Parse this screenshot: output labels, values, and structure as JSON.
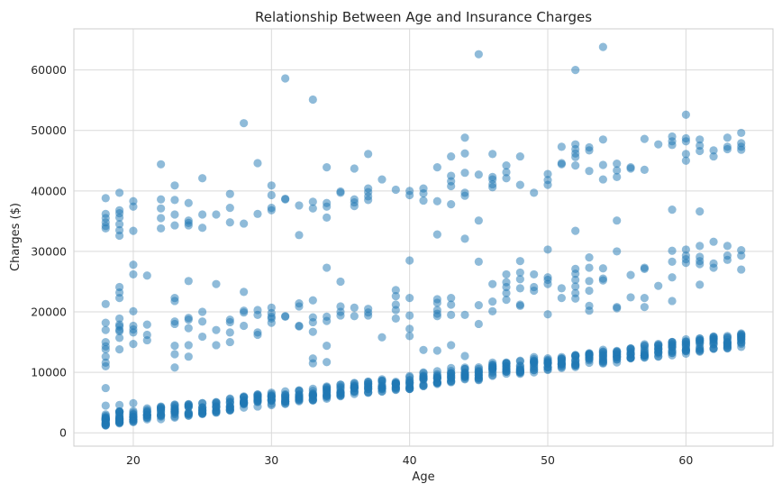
{
  "chart_data": {
    "type": "scatter",
    "title": "Relationship Between Age and Insurance Charges",
    "xlabel": "Age",
    "ylabel": "Charges ($)",
    "xlim": [
      15.7,
      66.3
    ],
    "ylim": [
      -2200,
      66800
    ],
    "xticks": [
      20,
      30,
      40,
      50,
      60
    ],
    "yticks": [
      0,
      10000,
      20000,
      30000,
      40000,
      50000,
      60000
    ],
    "grid": true,
    "point_color": "#1f77b4",
    "point_alpha": 0.5,
    "tiers": {
      "low": {
        "base": 1100,
        "slope": 280,
        "spread": 2200,
        "min_age": 18,
        "max_age": 64
      },
      "mid": {
        "base": 13500,
        "slope": 210,
        "spread": 9500
      },
      "high": {
        "base": 33500,
        "slope": 230,
        "spread": 9000
      }
    },
    "points": [
      [
        18,
        38800
      ],
      [
        18,
        36200
      ],
      [
        18,
        35500
      ],
      [
        18,
        34800
      ],
      [
        18,
        34200
      ],
      [
        18,
        33800
      ],
      [
        18,
        21300
      ],
      [
        18,
        18200
      ],
      [
        18,
        17000
      ],
      [
        18,
        15000
      ],
      [
        18,
        14300
      ],
      [
        18,
        13800
      ],
      [
        18,
        12600
      ],
      [
        18,
        11600
      ],
      [
        18,
        11000
      ],
      [
        18,
        7400
      ],
      [
        18,
        4500
      ],
      [
        19,
        39700
      ],
      [
        19,
        36800
      ],
      [
        19,
        36300
      ],
      [
        19,
        35600
      ],
      [
        19,
        34500
      ],
      [
        19,
        33500
      ],
      [
        19,
        32600
      ],
      [
        19,
        24100
      ],
      [
        19,
        23200
      ],
      [
        19,
        22300
      ],
      [
        19,
        18900
      ],
      [
        19,
        17900
      ],
      [
        19,
        17600
      ],
      [
        19,
        17000
      ],
      [
        19,
        16800
      ],
      [
        19,
        15700
      ],
      [
        19,
        13800
      ],
      [
        19,
        4600
      ],
      [
        20,
        38300
      ],
      [
        20,
        37400
      ],
      [
        20,
        33400
      ],
      [
        20,
        27800
      ],
      [
        20,
        26200
      ],
      [
        20,
        20100
      ],
      [
        20,
        17700
      ],
      [
        20,
        17100
      ],
      [
        20,
        16600
      ],
      [
        20,
        14700
      ],
      [
        20,
        4900
      ],
      [
        21,
        26000
      ],
      [
        21,
        17900
      ],
      [
        21,
        16200
      ],
      [
        21,
        15300
      ],
      [
        22,
        44400
      ],
      [
        22,
        38600
      ],
      [
        22,
        37100
      ],
      [
        22,
        35500
      ],
      [
        22,
        33800
      ],
      [
        23,
        40900
      ],
      [
        23,
        38500
      ],
      [
        23,
        36100
      ],
      [
        23,
        34300
      ],
      [
        23,
        22300
      ],
      [
        23,
        21800
      ],
      [
        23,
        18400
      ],
      [
        23,
        18000
      ],
      [
        23,
        14400
      ],
      [
        23,
        13000
      ],
      [
        23,
        10800
      ],
      [
        24,
        38000
      ],
      [
        24,
        35100
      ],
      [
        24,
        34700
      ],
      [
        24,
        34300
      ],
      [
        24,
        25100
      ],
      [
        24,
        19000
      ],
      [
        24,
        18700
      ],
      [
        24,
        17300
      ],
      [
        24,
        14500
      ],
      [
        24,
        12600
      ],
      [
        25,
        42100
      ],
      [
        25,
        36100
      ],
      [
        25,
        33900
      ],
      [
        25,
        20000
      ],
      [
        25,
        18400
      ],
      [
        25,
        15900
      ],
      [
        26,
        36100
      ],
      [
        26,
        24600
      ],
      [
        26,
        17000
      ],
      [
        26,
        14500
      ],
      [
        27,
        39500
      ],
      [
        27,
        37200
      ],
      [
        27,
        34800
      ],
      [
        27,
        18700
      ],
      [
        27,
        18300
      ],
      [
        27,
        16600
      ],
      [
        27,
        15000
      ],
      [
        28,
        51200
      ],
      [
        28,
        34600
      ],
      [
        28,
        23300
      ],
      [
        28,
        20200
      ],
      [
        28,
        19900
      ],
      [
        28,
        17700
      ],
      [
        29,
        44600
      ],
      [
        29,
        36200
      ],
      [
        29,
        20300
      ],
      [
        29,
        19500
      ],
      [
        29,
        16600
      ],
      [
        29,
        16200
      ],
      [
        30,
        40900
      ],
      [
        30,
        39300
      ],
      [
        30,
        37200
      ],
      [
        30,
        36800
      ],
      [
        30,
        20700
      ],
      [
        30,
        19800
      ],
      [
        30,
        19200
      ],
      [
        30,
        18900
      ],
      [
        30,
        18200
      ],
      [
        31,
        58600
      ],
      [
        31,
        38700
      ],
      [
        31,
        38600
      ],
      [
        31,
        19200
      ],
      [
        31,
        19300
      ],
      [
        32,
        37600
      ],
      [
        32,
        32700
      ],
      [
        32,
        21400
      ],
      [
        32,
        20900
      ],
      [
        32,
        17700
      ],
      [
        32,
        17600
      ],
      [
        33,
        55100
      ],
      [
        33,
        38200
      ],
      [
        33,
        37100
      ],
      [
        33,
        21900
      ],
      [
        33,
        19100
      ],
      [
        33,
        18300
      ],
      [
        33,
        16700
      ],
      [
        33,
        12300
      ],
      [
        33,
        11500
      ],
      [
        34,
        43900
      ],
      [
        34,
        38000
      ],
      [
        34,
        37400
      ],
      [
        34,
        35600
      ],
      [
        34,
        27300
      ],
      [
        34,
        19200
      ],
      [
        34,
        18500
      ],
      [
        34,
        14400
      ],
      [
        34,
        11700
      ],
      [
        35,
        39900
      ],
      [
        35,
        39700
      ],
      [
        35,
        25000
      ],
      [
        35,
        20900
      ],
      [
        35,
        20000
      ],
      [
        35,
        19400
      ],
      [
        36,
        43700
      ],
      [
        36,
        38600
      ],
      [
        36,
        38100
      ],
      [
        36,
        37500
      ],
      [
        36,
        20700
      ],
      [
        36,
        19300
      ],
      [
        37,
        46100
      ],
      [
        37,
        40400
      ],
      [
        37,
        39800
      ],
      [
        37,
        39100
      ],
      [
        37,
        38500
      ],
      [
        37,
        20500
      ],
      [
        37,
        19900
      ],
      [
        37,
        19400
      ],
      [
        38,
        41900
      ],
      [
        38,
        15800
      ],
      [
        39,
        40200
      ],
      [
        39,
        23600
      ],
      [
        39,
        22600
      ],
      [
        39,
        21200
      ],
      [
        39,
        20300
      ],
      [
        39,
        18900
      ],
      [
        40,
        40000
      ],
      [
        40,
        39300
      ],
      [
        40,
        28500
      ],
      [
        40,
        22300
      ],
      [
        40,
        19400
      ],
      [
        40,
        17200
      ],
      [
        40,
        16000
      ],
      [
        41,
        40400
      ],
      [
        41,
        39600
      ],
      [
        41,
        38400
      ],
      [
        41,
        13700
      ],
      [
        42,
        43900
      ],
      [
        42,
        38300
      ],
      [
        42,
        32800
      ],
      [
        42,
        22100
      ],
      [
        42,
        21500
      ],
      [
        42,
        20300
      ],
      [
        42,
        19700
      ],
      [
        42,
        19300
      ],
      [
        42,
        13600
      ],
      [
        43,
        45700
      ],
      [
        43,
        42500
      ],
      [
        43,
        41600
      ],
      [
        43,
        40800
      ],
      [
        43,
        37800
      ],
      [
        43,
        22300
      ],
      [
        43,
        21200
      ],
      [
        43,
        19500
      ],
      [
        43,
        14500
      ],
      [
        44,
        48800
      ],
      [
        44,
        46200
      ],
      [
        44,
        43000
      ],
      [
        44,
        39700
      ],
      [
        44,
        39200
      ],
      [
        44,
        32100
      ],
      [
        44,
        19500
      ],
      [
        44,
        12700
      ],
      [
        45,
        62600
      ],
      [
        45,
        42700
      ],
      [
        45,
        35100
      ],
      [
        45,
        28300
      ],
      [
        45,
        21100
      ],
      [
        45,
        18000
      ],
      [
        46,
        46100
      ],
      [
        46,
        42300
      ],
      [
        46,
        41900
      ],
      [
        46,
        41100
      ],
      [
        46,
        40600
      ],
      [
        46,
        24600
      ],
      [
        46,
        21700
      ],
      [
        46,
        20100
      ],
      [
        47,
        44200
      ],
      [
        47,
        43100
      ],
      [
        47,
        42100
      ],
      [
        47,
        26200
      ],
      [
        47,
        24900
      ],
      [
        47,
        24100
      ],
      [
        47,
        23100
      ],
      [
        47,
        22000
      ],
      [
        48,
        45700
      ],
      [
        48,
        41000
      ],
      [
        48,
        28400
      ],
      [
        48,
        26500
      ],
      [
        48,
        25400
      ],
      [
        48,
        23900
      ],
      [
        48,
        21200
      ],
      [
        48,
        21000
      ],
      [
        49,
        39700
      ],
      [
        49,
        26200
      ],
      [
        49,
        24100
      ],
      [
        49,
        23500
      ],
      [
        50,
        42800
      ],
      [
        50,
        41800
      ],
      [
        50,
        41000
      ],
      [
        50,
        30300
      ],
      [
        50,
        25700
      ],
      [
        50,
        25300
      ],
      [
        50,
        24600
      ],
      [
        50,
        19600
      ],
      [
        51,
        47300
      ],
      [
        51,
        44600
      ],
      [
        51,
        44400
      ],
      [
        51,
        23900
      ],
      [
        51,
        22300
      ],
      [
        52,
        60000
      ],
      [
        52,
        47700
      ],
      [
        52,
        46900
      ],
      [
        52,
        46200
      ],
      [
        52,
        45600
      ],
      [
        52,
        44200
      ],
      [
        52,
        33400
      ],
      [
        52,
        27100
      ],
      [
        52,
        26300
      ],
      [
        52,
        25300
      ],
      [
        52,
        24200
      ],
      [
        52,
        23100
      ],
      [
        52,
        22200
      ],
      [
        53,
        47200
      ],
      [
        53,
        46700
      ],
      [
        53,
        43300
      ],
      [
        53,
        29000
      ],
      [
        53,
        27300
      ],
      [
        53,
        25100
      ],
      [
        53,
        23500
      ],
      [
        53,
        21000
      ],
      [
        53,
        20200
      ],
      [
        54,
        63800
      ],
      [
        54,
        48500
      ],
      [
        54,
        44300
      ],
      [
        54,
        41900
      ],
      [
        54,
        27200
      ],
      [
        54,
        25500
      ],
      [
        54,
        25200
      ],
      [
        55,
        44500
      ],
      [
        55,
        43400
      ],
      [
        55,
        42300
      ],
      [
        55,
        35100
      ],
      [
        55,
        30000
      ],
      [
        55,
        20800
      ],
      [
        55,
        20600
      ],
      [
        56,
        43900
      ],
      [
        56,
        43700
      ],
      [
        56,
        26100
      ],
      [
        56,
        22400
      ],
      [
        57,
        48600
      ],
      [
        57,
        43500
      ],
      [
        57,
        27300
      ],
      [
        57,
        27100
      ],
      [
        57,
        22300
      ],
      [
        57,
        20800
      ],
      [
        58,
        47700
      ],
      [
        58,
        24300
      ],
      [
        59,
        49000
      ],
      [
        59,
        48200
      ],
      [
        59,
        47600
      ],
      [
        59,
        36900
      ],
      [
        59,
        30100
      ],
      [
        59,
        28300
      ],
      [
        59,
        25700
      ],
      [
        59,
        21800
      ],
      [
        60,
        52600
      ],
      [
        60,
        48700
      ],
      [
        60,
        48200
      ],
      [
        60,
        46100
      ],
      [
        60,
        45000
      ],
      [
        60,
        30300
      ],
      [
        60,
        29300
      ],
      [
        60,
        28700
      ],
      [
        60,
        28100
      ],
      [
        61,
        48500
      ],
      [
        61,
        47500
      ],
      [
        61,
        46600
      ],
      [
        61,
        36600
      ],
      [
        61,
        30900
      ],
      [
        61,
        29100
      ],
      [
        61,
        28400
      ],
      [
        61,
        27900
      ],
      [
        61,
        24500
      ],
      [
        62,
        46700
      ],
      [
        62,
        45700
      ],
      [
        62,
        31600
      ],
      [
        62,
        28000
      ],
      [
        62,
        27300
      ],
      [
        63,
        48800
      ],
      [
        63,
        47300
      ],
      [
        63,
        46900
      ],
      [
        63,
        30900
      ],
      [
        63,
        29300
      ],
      [
        63,
        28600
      ],
      [
        64,
        49600
      ],
      [
        64,
        47900
      ],
      [
        64,
        47300
      ],
      [
        64,
        46800
      ],
      [
        64,
        30200
      ],
      [
        64,
        29300
      ],
      [
        64,
        27000
      ]
    ]
  }
}
